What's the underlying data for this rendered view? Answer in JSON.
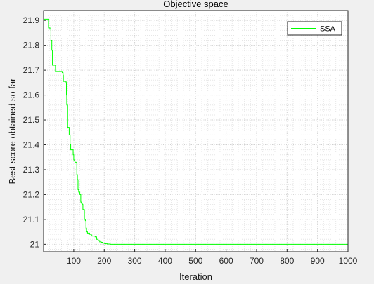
{
  "chart_data": {
    "type": "line",
    "title": "Objective space",
    "xlabel": "Iteration",
    "ylabel": "Best score obtained so far",
    "xlim": [
      1,
      1000
    ],
    "ylim": [
      20.97,
      21.94
    ],
    "xticks": [
      100,
      200,
      300,
      400,
      500,
      600,
      700,
      800,
      900,
      1000
    ],
    "yticks": [
      21,
      21.1,
      21.2,
      21.3,
      21.4,
      21.5,
      21.6,
      21.7,
      21.8,
      21.9
    ],
    "grid": true,
    "minor_grid": true,
    "legend": {
      "location": "top-right"
    },
    "series": [
      {
        "name": "SSA",
        "color": "#00ff00",
        "step": true,
        "x": [
          1,
          17,
          22,
          25,
          28,
          30,
          40,
          48,
          60,
          62,
          65,
          66,
          75,
          76,
          77,
          80,
          85,
          88,
          90,
          95,
          98,
          100,
          101,
          104,
          108,
          110,
          112,
          114,
          116,
          118,
          120,
          123,
          125,
          128,
          130,
          135,
          138,
          140,
          142,
          145,
          148,
          150,
          152,
          158,
          160,
          165,
          170,
          175,
          180,
          185,
          190,
          195,
          200,
          205,
          210,
          215,
          220,
          230,
          240,
          260,
          300,
          400,
          500,
          600,
          700,
          800,
          900,
          1000
        ],
        "y": [
          21.905,
          21.87,
          21.865,
          21.82,
          21.78,
          21.72,
          21.695,
          21.695,
          21.695,
          21.69,
          21.68,
          21.655,
          21.65,
          21.6,
          21.56,
          21.47,
          21.44,
          21.4,
          21.38,
          21.38,
          21.36,
          21.34,
          21.335,
          21.33,
          21.33,
          21.28,
          21.26,
          21.22,
          21.21,
          21.21,
          21.2,
          21.17,
          21.165,
          21.16,
          21.14,
          21.1,
          21.095,
          21.065,
          21.05,
          21.045,
          21.045,
          21.045,
          21.04,
          21.035,
          21.033,
          21.033,
          21.03,
          21.02,
          21.015,
          21.01,
          21.008,
          21.005,
          21.003,
          21.002,
          21.001,
          21.001,
          21.0,
          21.0,
          21.0,
          21.0,
          21.0,
          21.0,
          21.0,
          21.0,
          21.0,
          21.0,
          21.0,
          21.0
        ]
      }
    ]
  }
}
